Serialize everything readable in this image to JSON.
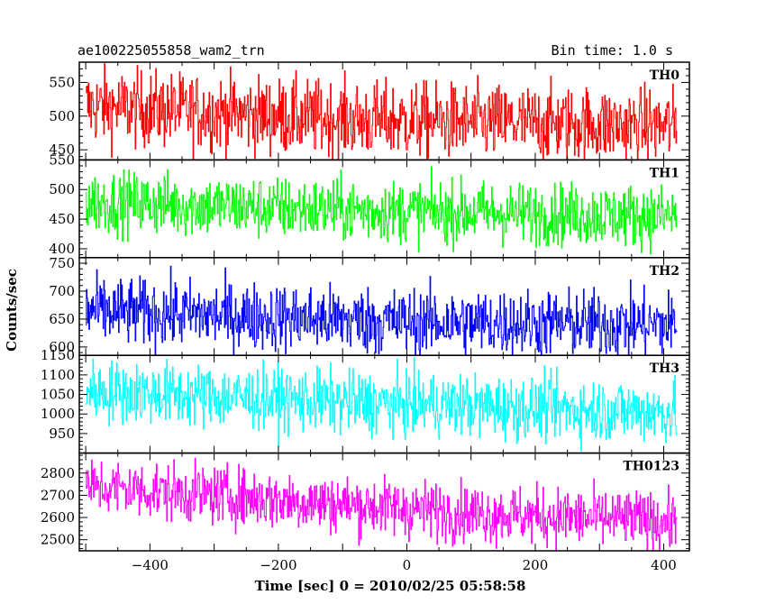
{
  "chart_data": {
    "type": "line",
    "title_left": "ae100225055858_wam2_trn",
    "title_right": "Bin time: 1.0 s",
    "xlabel": "Time [sec] 0 = 2010/02/25 05:58:58",
    "ylabel": "Counts/sec",
    "xlim": [
      -510,
      440
    ],
    "x_data_range": [
      -500,
      420
    ],
    "x_ticks": [
      -400,
      -200,
      0,
      200,
      400
    ],
    "panels": [
      {
        "name": "TH0",
        "color": "#ff0000",
        "ylim": [
          435,
          580
        ],
        "y_ticks": [
          450,
          500,
          550
        ],
        "trend": [
          [
            -500,
            515
          ],
          [
            -100,
            495
          ],
          [
            420,
            485
          ]
        ],
        "noise": 28
      },
      {
        "name": "TH1",
        "color": "#00ff00",
        "ylim": [
          385,
          550
        ],
        "y_ticks": [
          400,
          450,
          500,
          550
        ],
        "trend": [
          [
            -500,
            480
          ],
          [
            -100,
            465
          ],
          [
            420,
            455
          ]
        ],
        "noise": 26
      },
      {
        "name": "TH2",
        "color": "#0000ff",
        "ylim": [
          585,
          760
        ],
        "y_ticks": [
          600,
          650,
          700,
          750
        ],
        "trend": [
          [
            -500,
            665
          ],
          [
            0,
            645
          ],
          [
            420,
            640
          ]
        ],
        "noise": 30
      },
      {
        "name": "TH3",
        "color": "#00ffff",
        "ylim": [
          900,
          1150
        ],
        "y_ticks": [
          950,
          1000,
          1050,
          1100,
          1150
        ],
        "trend": [
          [
            -500,
            1060
          ],
          [
            -100,
            1030
          ],
          [
            420,
            1005
          ]
        ],
        "noise": 40
      },
      {
        "name": "TH0123",
        "color": "#ff00ff",
        "ylim": [
          2450,
          2890
        ],
        "y_ticks": [
          2500,
          2600,
          2700,
          2800
        ],
        "trend": [
          [
            -500,
            2740
          ],
          [
            -200,
            2680
          ],
          [
            100,
            2620
          ],
          [
            420,
            2580
          ]
        ],
        "noise": 65
      }
    ]
  }
}
